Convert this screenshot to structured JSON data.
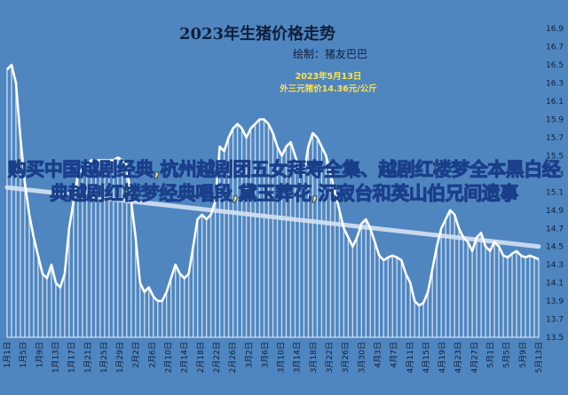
{
  "chart_data": {
    "type": "line",
    "title": "2023年生猪价格走势",
    "subtitle": "绘制：猪友巴巴",
    "annotation": {
      "date": "2023年5月13日",
      "text": "外三元猪价14.36元/公斤"
    },
    "overlay_text": "购买中国越剧经典,杭州越剧团五女拜寿全集、越剧红楼梦全本黑白经典越剧红楼梦经典唱段,黛玉葬花,沉寂台和英山伯兄间遗事",
    "ylim": [
      13.5,
      17.0
    ],
    "y_ticks": [
      "13.5",
      "13.7",
      "13.9",
      "14.1",
      "14.3",
      "14.5",
      "14.7",
      "14.9",
      "15.1",
      "15.3",
      "15.5",
      "15.7",
      "15.9",
      "16.1",
      "16.3",
      "16.5",
      "16.7",
      "16.9"
    ],
    "x_ticks": [
      "1月1日",
      "1月5日",
      "1月9日",
      "1月13日",
      "1月17日",
      "1月21日",
      "1月25日",
      "1月29日",
      "2月2日",
      "2月6日",
      "2月10日",
      "2月14日",
      "2月18日",
      "2月22日",
      "2月26日",
      "3月2日",
      "3月6日",
      "3月10日",
      "3月14日",
      "3月18日",
      "3月22日",
      "3月26日",
      "3月30日",
      "4月3日",
      "4月7日",
      "4月11日",
      "4月15日",
      "4月19日",
      "4月23日",
      "4月27日",
      "5月1日",
      "5月5日",
      "5月9日",
      "5月13日"
    ],
    "colors": {
      "background": "#4f86c0",
      "line": "#ffffff",
      "bars": "#dbe7f5",
      "trend": "#d6e2f2"
    },
    "series": [
      {
        "values": [
          16.45,
          16.5,
          16.3,
          15.7,
          15.2,
          14.85,
          14.6,
          14.4,
          14.2,
          14.15,
          14.3,
          14.1,
          14.05,
          14.2,
          14.7,
          15.0,
          15.3,
          15.35,
          15.4,
          15.45,
          15.45,
          15.45,
          15.45,
          15.45,
          15.45,
          15.48,
          15.45,
          15.4,
          15.0,
          14.6,
          14.1,
          14.0,
          14.05,
          13.95,
          13.9,
          13.9,
          14.0,
          14.15,
          14.3,
          14.2,
          14.15,
          14.2,
          14.5,
          14.8,
          14.85,
          14.8,
          14.85,
          15.0,
          15.6,
          15.55,
          15.7,
          15.8,
          15.85,
          15.8,
          15.7,
          15.8,
          15.85,
          15.9,
          15.9,
          15.85,
          15.75,
          15.6,
          15.5,
          15.6,
          15.65,
          15.5,
          15.35,
          15.3,
          15.6,
          15.75,
          15.7,
          15.6,
          15.5,
          15.3,
          15.1,
          14.9,
          14.7,
          14.6,
          14.5,
          14.6,
          14.75,
          14.8,
          14.7,
          14.55,
          14.4,
          14.35,
          14.38,
          14.4,
          14.38,
          14.35,
          14.2,
          14.1,
          13.9,
          13.85,
          13.88,
          14.0,
          14.25,
          14.5,
          14.7,
          14.8,
          14.9,
          14.85,
          14.7,
          14.6,
          14.55,
          14.45,
          14.6,
          14.65,
          14.5,
          14.45,
          14.55,
          14.5,
          14.4,
          14.38,
          14.42,
          14.45,
          14.4,
          14.38,
          14.4,
          14.38,
          14.36
        ]
      }
    ],
    "trend_line": {
      "start": 15.15,
      "end": 14.5
    }
  }
}
